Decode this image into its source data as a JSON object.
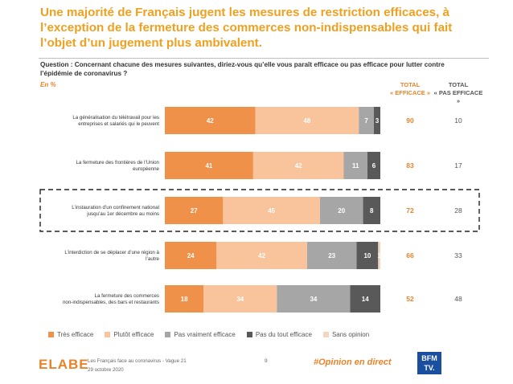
{
  "title": "Une majorité de Français jugent les mesures de restriction efficaces, à l’exception de la fermeture des commerces non-indispensables qui fait l’objet d’un jugement plus ambivalent.",
  "question": "Question : Concernant chacune des mesures suivantes, diriez-vous qu’elle vous paraît efficace ou pas efficace pour lutter contre l’épidémie de coronavirus ?",
  "unit": "En %",
  "columns": {
    "effective_line1": "TOTAL",
    "effective_line2": "« EFFICACE »",
    "ineffective_line1": "TOTAL",
    "ineffective_line2": "« PAS EFFICACE »"
  },
  "colors": {
    "tres_efficace": "#f0914a",
    "plutot_efficace": "#f9c49b",
    "pas_vraiment": "#a6a6a6",
    "pas_du_tout": "#595959",
    "sans_opinion": "#f5d5bd",
    "accent": "#e8832a"
  },
  "chart_data": {
    "type": "bar",
    "orientation": "horizontal",
    "stacked": true,
    "xlim": [
      0,
      100
    ],
    "categories": [
      "La généralisation du télétravail pour les entreprises et salariés qui le peuvent",
      "La fermeture des frontières de l’Union européenne",
      "L’instauration d’un confinement national jusqu’au 1er décembre au moins",
      "L’interdiction de se déplacer d’une région à l’autre",
      "La fermeture des commerces non-indispensables, des bars et restaurants"
    ],
    "series": [
      {
        "name": "Très efficace",
        "values": [
          42,
          41,
          27,
          24,
          18
        ]
      },
      {
        "name": "Plutôt efficace",
        "values": [
          48,
          42,
          45,
          42,
          34
        ]
      },
      {
        "name": "Pas vraiment efficace",
        "values": [
          7,
          11,
          20,
          23,
          34
        ]
      },
      {
        "name": "Pas du tout efficace",
        "values": [
          3,
          6,
          8,
          10,
          14
        ]
      },
      {
        "name": "Sans opinion",
        "values": [
          0,
          0,
          0,
          1,
          0
        ]
      }
    ],
    "segment_labels": [
      [
        "42",
        "48",
        "7",
        "3",
        ""
      ],
      [
        "41",
        "42",
        "11",
        "6",
        ""
      ],
      [
        "27",
        "45",
        "20",
        "8",
        ""
      ],
      [
        "24",
        "42",
        "23",
        "10",
        "1"
      ],
      [
        "18",
        "34",
        "34",
        "14",
        ""
      ]
    ],
    "total_efficace": [
      90,
      83,
      72,
      66,
      52
    ],
    "total_pas_efficace": [
      10,
      17,
      28,
      33,
      48
    ],
    "highlighted_category_index": 2,
    "legend_position": "bottom"
  },
  "footer": {
    "logo": "ELABE",
    "survey": "Les Français face au coronavirus - Vague 21",
    "date": "29 octobre 2020",
    "page": "9",
    "hashtag": "#Opinion en direct",
    "partner_logo_line1": "BFM",
    "partner_logo_line2": "TV."
  }
}
